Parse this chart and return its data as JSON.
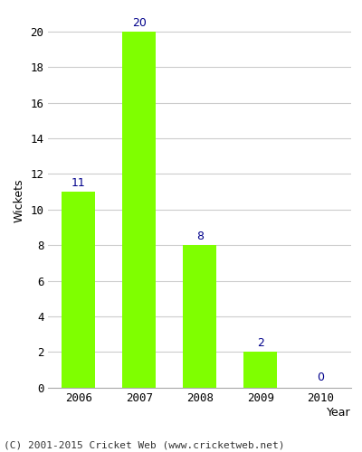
{
  "years": [
    "2006",
    "2007",
    "2008",
    "2009",
    "2010"
  ],
  "values": [
    11,
    20,
    8,
    2,
    0
  ],
  "bar_color": "#7FFF00",
  "bar_edge_color": "#7FFF00",
  "label_color": "#00008B",
  "xlabel": "Year",
  "ylabel": "Wickets",
  "ylim": [
    0,
    21
  ],
  "yticks": [
    0,
    2,
    4,
    6,
    8,
    10,
    12,
    14,
    16,
    18,
    20
  ],
  "grid_color": "#cccccc",
  "bg_color": "#ffffff",
  "footer": "(C) 2001-2015 Cricket Web (www.cricketweb.net)",
  "label_fontsize": 9,
  "axis_label_fontsize": 9,
  "tick_fontsize": 9,
  "footer_fontsize": 8
}
